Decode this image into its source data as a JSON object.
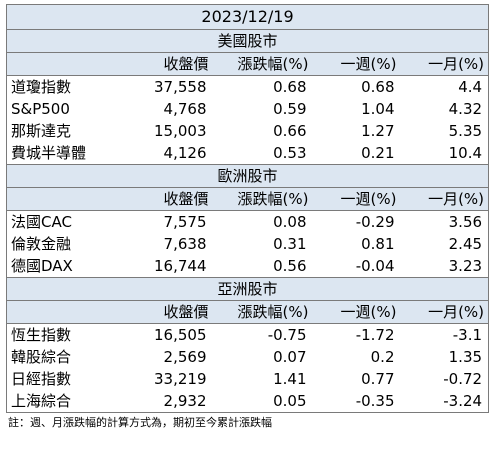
{
  "date": "2023/12/19",
  "columns": [
    "收盤價",
    "漲跌幅(%)",
    "一週(%)",
    "一月(%)"
  ],
  "sections": [
    {
      "title": "美國股市",
      "rows": [
        {
          "name": "道瓊指數",
          "close": "37,558",
          "change": "0.68",
          "week": "0.68",
          "month": "4.4"
        },
        {
          "name": "S&P500",
          "close": "4,768",
          "change": "0.59",
          "week": "1.04",
          "month": "4.32"
        },
        {
          "name": "那斯達克",
          "close": "15,003",
          "change": "0.66",
          "week": "1.27",
          "month": "5.35"
        },
        {
          "name": "費城半導體",
          "close": "4,126",
          "change": "0.53",
          "week": "0.21",
          "month": "10.4"
        }
      ]
    },
    {
      "title": "歐洲股市",
      "rows": [
        {
          "name": "法國CAC",
          "close": "7,575",
          "change": "0.08",
          "week": "-0.29",
          "month": "3.56"
        },
        {
          "name": "倫敦金融",
          "close": "7,638",
          "change": "0.31",
          "week": "0.81",
          "month": "2.45"
        },
        {
          "name": "德國DAX",
          "close": "16,744",
          "change": "0.56",
          "week": "-0.04",
          "month": "3.23"
        }
      ]
    },
    {
      "title": "亞洲股市",
      "rows": [
        {
          "name": "恆生指數",
          "close": "16,505",
          "change": "-0.75",
          "week": "-1.72",
          "month": "-3.1"
        },
        {
          "name": "韓股綜合",
          "close": "2,569",
          "change": "0.07",
          "week": "0.2",
          "month": "1.35"
        },
        {
          "name": "日經指數",
          "close": "33,219",
          "change": "1.41",
          "week": "0.77",
          "month": "-0.72"
        },
        {
          "name": "上海綜合",
          "close": "2,932",
          "change": "0.05",
          "week": "-0.35",
          "month": "-3.24"
        }
      ]
    }
  ],
  "note": "註：週、月漲跌幅的計算方式為，期初至今累計漲跌幅",
  "colors": {
    "header_bg": "#dce6f1",
    "border": "#7a7a7a"
  }
}
